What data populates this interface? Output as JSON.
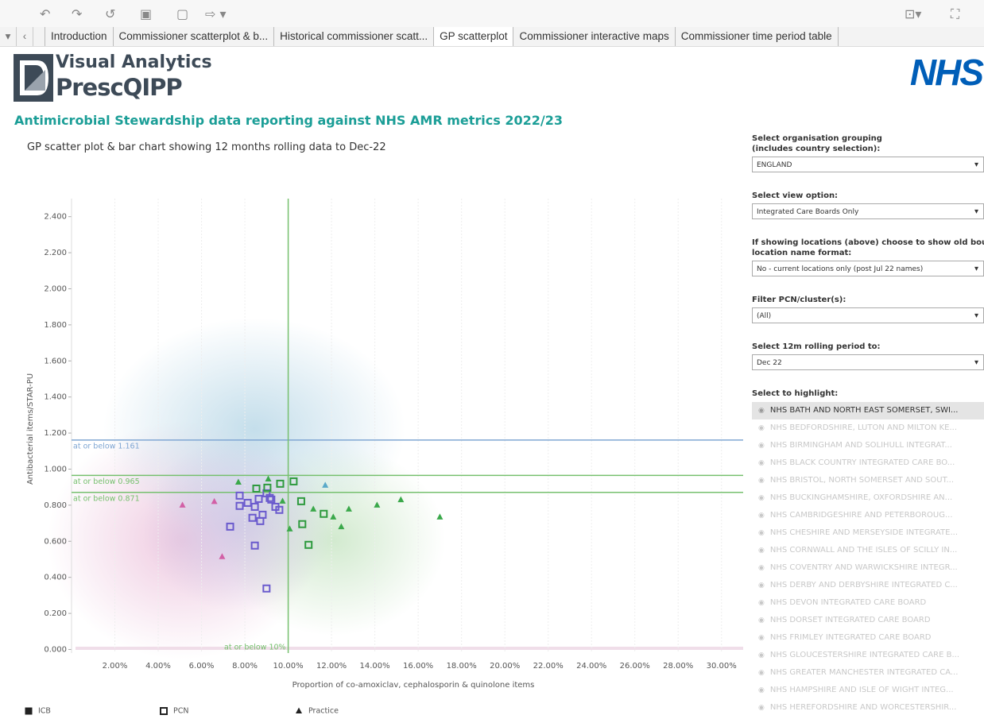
{
  "tabs": [
    "Introduction",
    "Commissioner scatterplot & b...",
    "Historical commissioner scatt...",
    "GP scatterplot",
    "Commissioner interactive maps",
    "Commissioner time period table"
  ],
  "header": {
    "logo_line1": "Visual Analytics",
    "logo_line2": "PrescQIPP",
    "nhs": "NHS",
    "title": "Antimicrobial Stewardship data reporting against NHS AMR metrics 2022/23",
    "subtitle": "GP scatter plot & bar chart showing 12 months rolling data to Dec-22"
  },
  "chart_data": {
    "type": "scatter",
    "x_label": "Proportion of co-amoxiclav, cephalosporin & quinolone items",
    "y_label": "Antibacterial items/STAR-PU",
    "xlim": [
      0,
      31
    ],
    "ylim": [
      -0.02,
      2.5
    ],
    "xticks": [
      {
        "value": 2,
        "label": "2.00%"
      },
      {
        "value": 4,
        "label": "4.00%"
      },
      {
        "value": 6,
        "label": "6.00%"
      },
      {
        "value": 8,
        "label": "8.00%"
      },
      {
        "value": 10,
        "label": "10.00%"
      },
      {
        "value": 12,
        "label": "12.00%"
      },
      {
        "value": 14,
        "label": "14.00%"
      },
      {
        "value": 16,
        "label": "16.00%"
      },
      {
        "value": 18,
        "label": "18.00%"
      },
      {
        "value": 20,
        "label": "20.00%"
      },
      {
        "value": 22,
        "label": "22.00%"
      },
      {
        "value": 24,
        "label": "24.00%"
      },
      {
        "value": 26,
        "label": "26.00%"
      },
      {
        "value": 28,
        "label": "28.00%"
      },
      {
        "value": 30,
        "label": "30.00%"
      }
    ],
    "yticks": [
      {
        "value": 0,
        "label": "0.000"
      },
      {
        "value": 0.2,
        "label": "0.200"
      },
      {
        "value": 0.4,
        "label": "0.400"
      },
      {
        "value": 0.6,
        "label": "0.600"
      },
      {
        "value": 0.8,
        "label": "0.800"
      },
      {
        "value": 1,
        "label": "1.000"
      },
      {
        "value": 1.2,
        "label": "1.200"
      },
      {
        "value": 1.4,
        "label": "1.400"
      },
      {
        "value": 1.6,
        "label": "1.600"
      },
      {
        "value": 1.8,
        "label": "1.800"
      },
      {
        "value": 2,
        "label": "2.000"
      },
      {
        "value": 2.2,
        "label": "2.200"
      },
      {
        "value": 2.4,
        "label": "2.400"
      }
    ],
    "grid": true,
    "reference_lines": [
      {
        "axis": "y",
        "value": 1.161,
        "label": "at or below 1.161",
        "color": "#7fa6d3"
      },
      {
        "axis": "y",
        "value": 0.965,
        "label": "at or below 0.965",
        "color": "#76c06e"
      },
      {
        "axis": "y",
        "value": 0.871,
        "label": "at or below 0.871",
        "color": "#76c06e"
      },
      {
        "axis": "x",
        "value": 10,
        "label": "at or below 10%",
        "color": "#76c06e"
      }
    ],
    "series": [
      {
        "name": "ICB",
        "marker": "filled-square",
        "color": "#222222",
        "x": [],
        "values": [],
        "colors": []
      },
      {
        "name": "PCN",
        "marker": "hollow-square",
        "color": "#222222",
        "x": [
          7.76,
          8.13,
          8.64,
          9.0,
          9.22,
          9.41,
          9.59,
          8.46,
          7.76,
          8.82,
          8.35,
          8.71,
          7.32,
          8.46,
          9.0,
          9.15,
          8.53,
          9.63,
          10.25,
          10.6,
          10.65,
          11.64,
          10.94,
          9.04
        ],
        "values": [
          0.853,
          0.813,
          0.835,
          0.866,
          0.831,
          0.791,
          0.774,
          0.791,
          0.796,
          0.747,
          0.73,
          0.712,
          0.681,
          0.576,
          0.338,
          0.84,
          0.892,
          0.919,
          0.932,
          0.822,
          0.695,
          0.752,
          0.58,
          0.897
        ],
        "colors": [
          "#6a5acd",
          "#6a5acd",
          "#6a5acd",
          "#6a5acd",
          "#6a5acd",
          "#6a5acd",
          "#6a5acd",
          "#6a5acd",
          "#6a5acd",
          "#6a5acd",
          "#6a5acd",
          "#6a5acd",
          "#6a5acd",
          "#6a5acd",
          "#6a5acd",
          "#6a5acd",
          "#2e9a3e",
          "#2e9a3e",
          "#2e9a3e",
          "#2e9a3e",
          "#2e9a3e",
          "#2e9a3e",
          "#2e9a3e",
          "#2e9a3e"
        ]
      },
      {
        "name": "Practice",
        "marker": "triangle",
        "color": "#222222",
        "x": [
          7.7,
          9.08,
          9.74,
          11.16,
          12.08,
          12.8,
          14.1,
          15.2,
          17.0,
          10.07,
          12.45,
          5.12,
          6.59,
          6.95,
          11.71
        ],
        "values": [
          0.927,
          0.945,
          0.822,
          0.778,
          0.734,
          0.778,
          0.8,
          0.83,
          0.734,
          0.668,
          0.68,
          0.8,
          0.82,
          0.514,
          0.91
        ],
        "colors": [
          "#3aa84a",
          "#3aa84a",
          "#3aa84a",
          "#3aa84a",
          "#3aa84a",
          "#3aa84a",
          "#3aa84a",
          "#3aa84a",
          "#3aa84a",
          "#3aa84a",
          "#3aa84a",
          "#d260a6",
          "#d260a6",
          "#d260a6",
          "#5aa9c9"
        ]
      }
    ]
  },
  "filters": [
    {
      "label": [
        "Select organisation grouping",
        "(includes country selection):"
      ],
      "value": "ENGLAND"
    },
    {
      "label": [
        "Select view option:"
      ],
      "value": "Integrated Care Boards Only"
    },
    {
      "label": [
        "If showing locations (above) choose to show old bou...",
        "location name format:"
      ],
      "value": "No - current locations only (post Jul 22 names)"
    },
    {
      "label": [
        "Filter PCN/cluster(s):"
      ],
      "value": "(All)"
    },
    {
      "label": [
        "Select 12m rolling period to:"
      ],
      "value": "Dec 22"
    }
  ],
  "highlight": {
    "label": "Select to highlight:",
    "items": [
      "NHS BATH AND NORTH EAST SOMERSET, SWI...",
      "NHS BEDFORDSHIRE, LUTON AND MILTON KE...",
      "NHS BIRMINGHAM AND SOLIHULL INTEGRAT...",
      "NHS BLACK COUNTRY INTEGRATED CARE BO...",
      "NHS BRISTOL, NORTH SOMERSET AND SOUT...",
      "NHS BUCKINGHAMSHIRE, OXFORDSHIRE AN...",
      "NHS CAMBRIDGESHIRE AND PETERBOROUG...",
      "NHS CHESHIRE AND MERSEYSIDE INTEGRATE...",
      "NHS CORNWALL AND THE ISLES OF SCILLY IN...",
      "NHS COVENTRY AND WARWICKSHIRE INTEGR...",
      "NHS DERBY AND DERBYSHIRE INTEGRATED C...",
      "NHS DEVON INTEGRATED CARE BOARD",
      "NHS DORSET INTEGRATED CARE BOARD",
      "NHS FRIMLEY INTEGRATED CARE BOARD",
      "NHS GLOUCESTERSHIRE INTEGRATED CARE B...",
      "NHS GREATER MANCHESTER INTEGRATED CA...",
      "NHS HAMPSHIRE AND ISLE OF WIGHT INTEG...",
      "NHS HEREFORDSHIRE AND WORCESTERSHIR..."
    ]
  }
}
